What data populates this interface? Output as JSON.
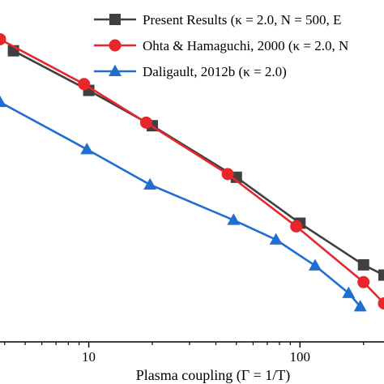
{
  "chart_data": {
    "type": "line",
    "xscale": "log",
    "xlim": [
      3.8,
      250
    ],
    "ylim": [
      0,
      1
    ],
    "grid": false,
    "xlabel": "Plasma coupling (Γ = 1/T)",
    "xticks": [
      10,
      100
    ],
    "legend_position": "top-right",
    "series": [
      {
        "name": "Present Results (κ = 2.0, N = 500,  E",
        "color": "#404040",
        "marker": "square",
        "x": [
          4.4,
          10,
          20,
          50,
          100,
          200,
          250
        ],
        "y": [
          0.8514,
          0.7356,
          0.6322,
          0.4815,
          0.3471,
          0.2253,
          0.1954
        ]
      },
      {
        "name": "Ohta & Hamaguchi, 2000 (κ = 2.0, N",
        "color": "#e8262b",
        "marker": "circle",
        "x": [
          3.8,
          9.5,
          18.7,
          45.5,
          96,
          200,
          250
        ],
        "y": [
          0.8851,
          0.754,
          0.6414,
          0.4908,
          0.3379,
          0.1747,
          0.1126
        ]
      },
      {
        "name": "Daligault, 2012b (κ = 2.0)",
        "color": "#1f6fd1",
        "marker": "triangle",
        "x": [
          3.8,
          9.8,
          19.5,
          48.5,
          77,
          118,
          170,
          193
        ],
        "y": [
          0.7011,
          0.5632,
          0.4598,
          0.3563,
          0.2989,
          0.223,
          0.1425,
          0.1034
        ]
      }
    ],
    "annotations": []
  }
}
